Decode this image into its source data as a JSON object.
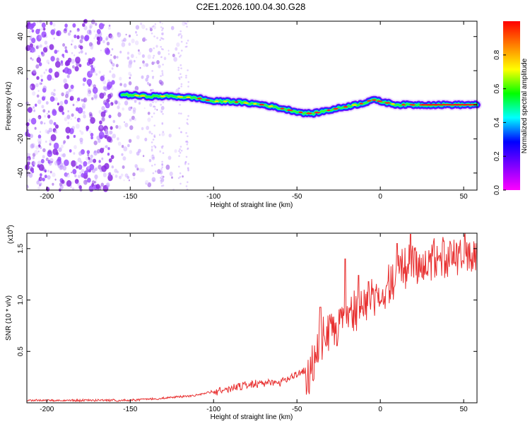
{
  "title": "C2E1.2026.100.04.30.G28",
  "chart_data": [
    {
      "type": "heatmap",
      "xlabel": "Height of straight line (km)",
      "ylabel": "Frequency (Hz)",
      "xlim": [
        -212,
        58
      ],
      "ylim": [
        -50,
        49
      ],
      "x_ticks": [
        -200,
        -150,
        -100,
        -50,
        0,
        50
      ],
      "y_ticks": [
        -40,
        -20,
        0,
        20,
        40
      ],
      "ridge": {
        "description_values": "peak frequency vs height",
        "x": [
          -155,
          -140,
          -125,
          -110,
          -100,
          -90,
          -80,
          -70,
          -60,
          -50,
          -45,
          -40,
          -30,
          -20,
          -10,
          -5,
          0,
          10,
          20,
          30,
          40,
          58
        ],
        "y": [
          6,
          5,
          5,
          4,
          2,
          2,
          1,
          0,
          -2,
          -4,
          -5,
          -5,
          -3,
          -1,
          1,
          3,
          2,
          0,
          0,
          0,
          0,
          0
        ]
      },
      "colorbar": {
        "label": "Normalized spectral amplitude",
        "range": [
          0,
          1
        ],
        "ticks": [
          "0.0",
          "0.2",
          "0.4",
          "0.6",
          "0.8"
        ],
        "tick_values": [
          0.0,
          0.2,
          0.4,
          0.6,
          0.8
        ],
        "colors": [
          "#ff00ff",
          "#8000ff",
          "#0000ff",
          "#00ffff",
          "#00ff00",
          "#ffff00",
          "#ff8000",
          "#ff0000"
        ]
      }
    },
    {
      "type": "line",
      "xlabel": "Height of straight line (km)",
      "ylabel": "SNR (10 * v/v)",
      "scale_label": "(x10",
      "scale_exp": "4",
      "xlim": [
        -212,
        58
      ],
      "ylim": [
        0,
        1.65
      ],
      "x_ticks": [
        -200,
        -150,
        -100,
        -50,
        0,
        50
      ],
      "y_ticks": [
        "0.5",
        "1.0",
        "1.5"
      ],
      "y_tick_values": [
        0.5,
        1.0,
        1.5
      ],
      "color": "#e83030",
      "envelope": {
        "x": [
          -212,
          -150,
          -130,
          -110,
          -100,
          -90,
          -80,
          -60,
          -50,
          -45,
          -40,
          -36,
          -30,
          -25,
          -20,
          -10,
          0,
          10,
          18,
          25,
          40,
          58
        ],
        "y": [
          0.03,
          0.03,
          0.05,
          0.08,
          0.12,
          0.16,
          0.2,
          0.22,
          0.3,
          0.35,
          0.55,
          0.75,
          0.85,
          0.95,
          1.0,
          1.1,
          1.25,
          1.4,
          1.52,
          1.55,
          1.58,
          1.6
        ]
      },
      "spikes": [
        {
          "x": -36,
          "y": 0.93
        },
        {
          "x": -21,
          "y": 1.4
        },
        {
          "x": -13,
          "y": 1.24
        },
        {
          "x": -7,
          "y": 1.18
        },
        {
          "x": 18,
          "y": 1.64
        },
        {
          "x": 10,
          "y": 1.55
        }
      ]
    }
  ]
}
